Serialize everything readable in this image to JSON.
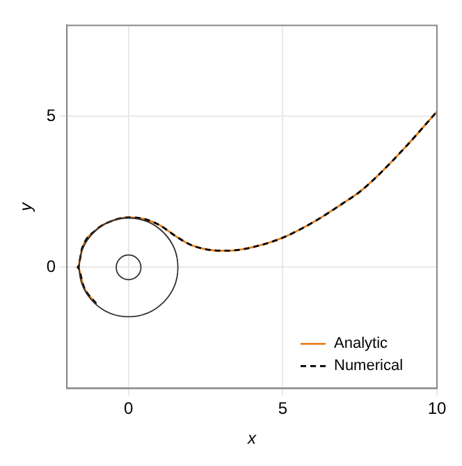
{
  "chart_data": {
    "type": "line",
    "xlabel": "x",
    "ylabel": "y",
    "xlim": [
      -2,
      10
    ],
    "ylim": [
      -4,
      8
    ],
    "xticks": [
      0,
      5,
      10
    ],
    "yticks": [
      0,
      5
    ],
    "grid": true,
    "legend": "bottom right",
    "series": [
      {
        "name": "Analytic",
        "color": "#e8801e",
        "line_style": "solid",
        "x": [
          -1.05,
          -1.45,
          -1.65,
          -1.5,
          -1.1,
          -0.5,
          0,
          0.5,
          1,
          1.5,
          2,
          2.5,
          3,
          3.5,
          4,
          5,
          6,
          7,
          7.5,
          8,
          9,
          10
        ],
        "values": [
          -1.2,
          -0.65,
          0,
          0.65,
          1.2,
          1.55,
          1.65,
          1.6,
          1.4,
          1.05,
          0.75,
          0.6,
          0.55,
          0.57,
          0.66,
          0.98,
          1.5,
          2.15,
          2.5,
          2.95,
          4.0,
          5.15
        ]
      },
      {
        "name": "Numerical",
        "color": "#000000",
        "line_style": "dashed",
        "x": [
          -1.05,
          -1.45,
          -1.65,
          -1.5,
          -1.1,
          -0.5,
          0,
          0.5,
          1,
          1.5,
          2,
          2.5,
          3,
          3.5,
          4,
          5,
          6,
          7,
          7.5,
          8,
          9,
          10
        ],
        "values": [
          -1.2,
          -0.65,
          0,
          0.65,
          1.2,
          1.55,
          1.65,
          1.6,
          1.4,
          1.05,
          0.75,
          0.6,
          0.55,
          0.57,
          0.66,
          0.98,
          1.5,
          2.15,
          2.5,
          2.95,
          4.0,
          5.15
        ]
      }
    ]
  }
}
